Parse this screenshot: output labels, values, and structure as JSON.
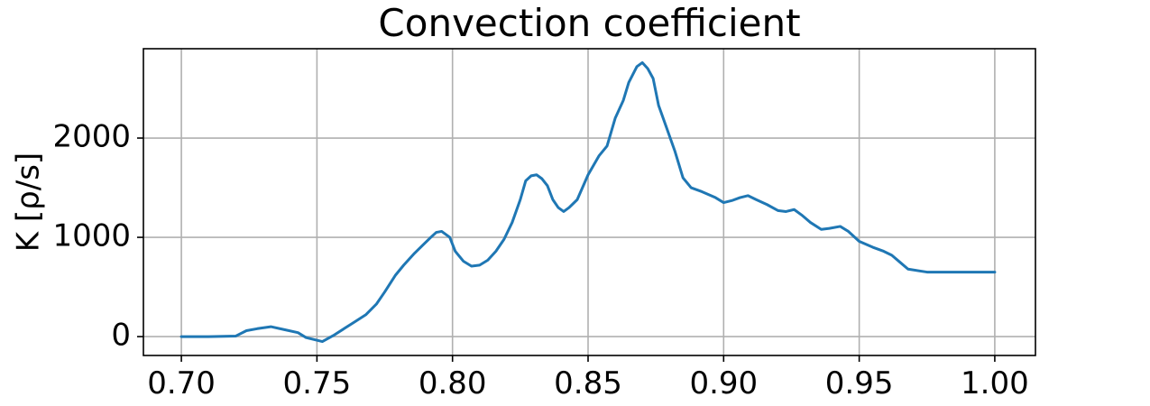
{
  "chart_data": {
    "type": "line",
    "title": "Convection coefficient",
    "xlabel": "",
    "ylabel": "K [ρ/s]",
    "xlim": [
      0.686,
      1.015
    ],
    "ylim": [
      -190,
      2900
    ],
    "grid": true,
    "xticks": [
      0.7,
      0.75,
      0.8,
      0.85,
      0.9,
      0.95,
      1.0
    ],
    "xtick_labels": [
      "0.70",
      "0.75",
      "0.80",
      "0.85",
      "0.90",
      "0.95",
      "1.00"
    ],
    "yticks": [
      0,
      1000,
      2000
    ],
    "ytick_labels": [
      "0",
      "1000",
      "2000"
    ],
    "colors": {
      "series": "#1f77b4"
    },
    "series": [
      {
        "name": "",
        "x": [
          0.7,
          0.71,
          0.72,
          0.724,
          0.728,
          0.733,
          0.738,
          0.743,
          0.746,
          0.752,
          0.756,
          0.76,
          0.764,
          0.768,
          0.772,
          0.775,
          0.779,
          0.782,
          0.786,
          0.789,
          0.792,
          0.794,
          0.796,
          0.799,
          0.801,
          0.804,
          0.807,
          0.81,
          0.813,
          0.816,
          0.819,
          0.822,
          0.825,
          0.827,
          0.829,
          0.831,
          0.833,
          0.835,
          0.837,
          0.839,
          0.841,
          0.843,
          0.846,
          0.85,
          0.854,
          0.857,
          0.86,
          0.863,
          0.865,
          0.868,
          0.87,
          0.872,
          0.874,
          0.876,
          0.879,
          0.882,
          0.885,
          0.888,
          0.892,
          0.897,
          0.9,
          0.903,
          0.906,
          0.909,
          0.912,
          0.916,
          0.92,
          0.923,
          0.926,
          0.929,
          0.932,
          0.936,
          0.939,
          0.943,
          0.946,
          0.95,
          0.955,
          0.959,
          0.962,
          0.965,
          0.968,
          0.975,
          0.985,
          1.0
        ],
        "y": [
          0,
          0,
          5,
          60,
          80,
          100,
          70,
          40,
          -10,
          -50,
          10,
          80,
          150,
          220,
          330,
          450,
          620,
          720,
          840,
          920,
          1000,
          1050,
          1060,
          1000,
          860,
          760,
          710,
          720,
          770,
          860,
          980,
          1150,
          1380,
          1570,
          1620,
          1630,
          1590,
          1520,
          1380,
          1300,
          1260,
          1300,
          1380,
          1630,
          1820,
          1920,
          2200,
          2380,
          2560,
          2720,
          2760,
          2700,
          2600,
          2330,
          2100,
          1870,
          1600,
          1500,
          1460,
          1400,
          1350,
          1370,
          1400,
          1420,
          1380,
          1330,
          1270,
          1260,
          1280,
          1220,
          1150,
          1080,
          1090,
          1110,
          1060,
          960,
          900,
          860,
          820,
          750,
          680,
          650,
          650,
          650
        ]
      }
    ]
  }
}
